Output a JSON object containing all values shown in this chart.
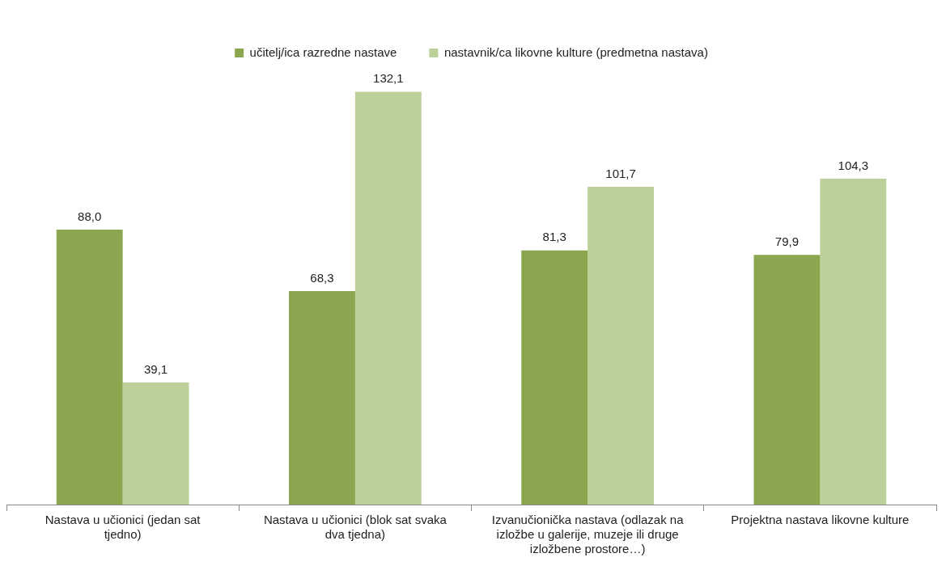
{
  "chart_data": {
    "type": "bar",
    "categories": [
      "Nastava u učionici (jedan sat tjedno)",
      "Nastava u učionici (blok sat svaka dva tjedna)",
      "Izvanučionička nastava (odlazak na izložbe u galerije, muzeje ili druge izložbene prostore…)",
      "Projektna nastava likovne kulture"
    ],
    "series": [
      {
        "name": "učitelj/ica razredne nastave",
        "color": "#8aa64f",
        "values": [
          88.0,
          68.3,
          81.3,
          79.9
        ],
        "value_labels": [
          "88,0",
          "68,3",
          "81,3",
          "79,9"
        ]
      },
      {
        "name": "nastavnik/ca likovne kulture (predmetna nastava)",
        "color": "#bcd199",
        "values": [
          39.1,
          132.1,
          101.7,
          104.3
        ],
        "value_labels": [
          "39,1",
          "132,1",
          "101,7",
          "104,3"
        ]
      }
    ],
    "legend": "top",
    "tick_labels": "x"
  }
}
